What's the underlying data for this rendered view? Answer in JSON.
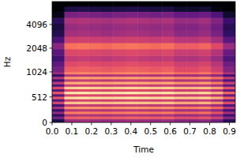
{
  "chart_data": {
    "type": "heatmap",
    "x_label": "Time",
    "y_label": "Hz",
    "xlim": [
      0,
      0.93
    ],
    "ylim": [
      0,
      8000
    ],
    "xticks": [
      {
        "value": 0,
        "label": "0.0"
      },
      0.1,
      0.2,
      0.3,
      0.4,
      0.5,
      0.6,
      0.7,
      0.8,
      0.9
    ],
    "yticks": [
      0,
      512,
      1024,
      2048,
      4096
    ],
    "log": "y",
    "zlim": [
      -80,
      0
    ],
    "x_edges": [
      0,
      0.062,
      0.124,
      0.186,
      0.248,
      0.31,
      0.372,
      0.434,
      0.496,
      0.558,
      0.62,
      0.682,
      0.744,
      0.806,
      0.868,
      0.93
    ],
    "y_edges": [
      0,
      75,
      125,
      175,
      225,
      275,
      325,
      375,
      425,
      475,
      525,
      575,
      625,
      675,
      725,
      775,
      825,
      875,
      925,
      975,
      1025,
      1200,
      1400,
      1650,
      2000,
      2400,
      2900,
      3500,
      4200,
      5000,
      6000,
      7000,
      8000
    ],
    "cells": [
      [
        -70,
        -45,
        -44,
        -45,
        -46,
        -45,
        -44,
        -45,
        -46,
        -45,
        -49,
        -49,
        -47,
        -53,
        -67
      ],
      [
        -53,
        -28,
        -27,
        -28,
        -29,
        -28,
        -27,
        -28,
        -29,
        -28,
        -32,
        -32,
        -30,
        -36,
        -50
      ],
      [
        -67,
        -42,
        -41,
        -42,
        -43,
        -42,
        -41,
        -42,
        -43,
        -42,
        -46,
        -46,
        -44,
        -50,
        -64
      ],
      [
        -47,
        -22,
        -21,
        -22,
        -23,
        -22,
        -21,
        -22,
        -23,
        -22,
        -26,
        -26,
        -24,
        -30,
        -44
      ],
      [
        -65,
        -40,
        -39,
        -40,
        -41,
        -40,
        -39,
        -40,
        -41,
        -40,
        -44,
        -44,
        -42,
        -48,
        -62
      ],
      [
        -43,
        -18,
        -17,
        -18,
        -19,
        -18,
        -17,
        -18,
        -19,
        -18,
        -22,
        -22,
        -20,
        -26,
        -40
      ],
      [
        -63,
        -38,
        -37,
        -38,
        -39,
        -38,
        -37,
        -38,
        -39,
        -38,
        -42,
        -42,
        -40,
        -46,
        -60
      ],
      [
        -35,
        -10,
        -9,
        -10,
        -11,
        -10,
        -9,
        -10,
        -11,
        -10,
        -14,
        -14,
        -12,
        -18,
        -32
      ],
      [
        -60,
        -35,
        -34,
        -35,
        -36,
        -35,
        -34,
        -35,
        -36,
        -35,
        -39,
        -39,
        -37,
        -43,
        -57
      ],
      [
        -30,
        -5,
        -4,
        -5,
        -6,
        -5,
        -4,
        -5,
        -6,
        -5,
        -9,
        -9,
        -7,
        -13,
        -27
      ],
      [
        -58,
        -33,
        -32,
        -33,
        -34,
        -33,
        -32,
        -33,
        -34,
        -33,
        -37,
        -37,
        -35,
        -41,
        -55
      ],
      [
        -29,
        -4,
        -3,
        -4,
        -5,
        -4,
        -3,
        -4,
        -5,
        -4,
        -8,
        -8,
        -6,
        -12,
        -26
      ],
      [
        -58,
        -33,
        -32,
        -33,
        -34,
        -33,
        -32,
        -33,
        -34,
        -33,
        -37,
        -37,
        -35,
        -41,
        -55
      ],
      [
        -33,
        -8,
        -7,
        -8,
        -9,
        -8,
        -7,
        -8,
        -9,
        -8,
        -12,
        -12,
        -10,
        -16,
        -30
      ],
      [
        -61,
        -36,
        -35,
        -36,
        -37,
        -36,
        -35,
        -36,
        -37,
        -36,
        -40,
        -40,
        -38,
        -44,
        -58
      ],
      [
        -39,
        -14,
        -13,
        -14,
        -15,
        -14,
        -13,
        -14,
        -15,
        -14,
        -18,
        -18,
        -16,
        -22,
        -36
      ],
      [
        -63,
        -38,
        -37,
        -38,
        -39,
        -38,
        -37,
        -38,
        -39,
        -38,
        -42,
        -42,
        -40,
        -46,
        -60
      ],
      [
        -41,
        -16,
        -15,
        -16,
        -17,
        -16,
        -15,
        -16,
        -17,
        -16,
        -20,
        -20,
        -18,
        -24,
        -38
      ],
      [
        -65,
        -40,
        -39,
        -40,
        -41,
        -40,
        -39,
        -40,
        -41,
        -40,
        -44,
        -44,
        -42,
        -48,
        -62
      ],
      [
        -45,
        -20,
        -19,
        -20,
        -21,
        -20,
        -19,
        -20,
        -21,
        -20,
        -24,
        -24,
        -22,
        -28,
        -42
      ],
      [
        -53,
        -28,
        -27,
        -28,
        -29,
        -28,
        -27,
        -28,
        -29,
        -28,
        -32,
        -32,
        -30,
        -36,
        -50
      ],
      [
        -57,
        -32,
        -31,
        -32,
        -33,
        -32,
        -31,
        -32,
        -33,
        -32,
        -36,
        -36,
        -34,
        -40,
        -54
      ],
      [
        -63,
        -38,
        -37,
        -38,
        -39,
        -38,
        -37,
        -38,
        -39,
        -38,
        -42,
        -42,
        -40,
        -46,
        -60
      ],
      [
        -58,
        -33,
        -32,
        -33,
        -34,
        -33,
        -32,
        -33,
        -34,
        -33,
        -37,
        -37,
        -35,
        -41,
        -55
      ],
      [
        -49,
        -24,
        -23,
        -24,
        -25,
        -24,
        -23,
        -24,
        -25,
        -24,
        -28,
        -28,
        -26,
        -32,
        -46
      ],
      [
        -61,
        -36,
        -35,
        -36,
        -37,
        -36,
        -35,
        -36,
        -37,
        -36,
        -40,
        -40,
        -38,
        -44,
        -58
      ],
      [
        -69,
        -44,
        -43,
        -44,
        -45,
        -44,
        -43,
        -44,
        -45,
        -44,
        -48,
        -48,
        -46,
        -52,
        -66
      ],
      [
        -71,
        -46,
        -45,
        -46,
        -47,
        -46,
        -45,
        -46,
        -47,
        -46,
        -50,
        -50,
        -48,
        -54,
        -68
      ],
      [
        -67,
        -42,
        -41,
        -42,
        -43,
        -42,
        -41,
        -42,
        -43,
        -42,
        -46,
        -46,
        -44,
        -50,
        -64
      ],
      [
        -77,
        -52,
        -51,
        -52,
        -53,
        -52,
        -51,
        -52,
        -53,
        -52,
        -56,
        -56,
        -54,
        -60,
        -74
      ],
      [
        -80,
        -70,
        -69,
        -70,
        -71,
        -70,
        -69,
        -70,
        -71,
        -70,
        -74,
        -74,
        -72,
        -78,
        -80
      ],
      [
        -80,
        -80,
        -80,
        -80,
        -80,
        -80,
        -80,
        -80,
        -80,
        -80,
        -80,
        -80,
        -80,
        -80,
        -80
      ]
    ]
  }
}
